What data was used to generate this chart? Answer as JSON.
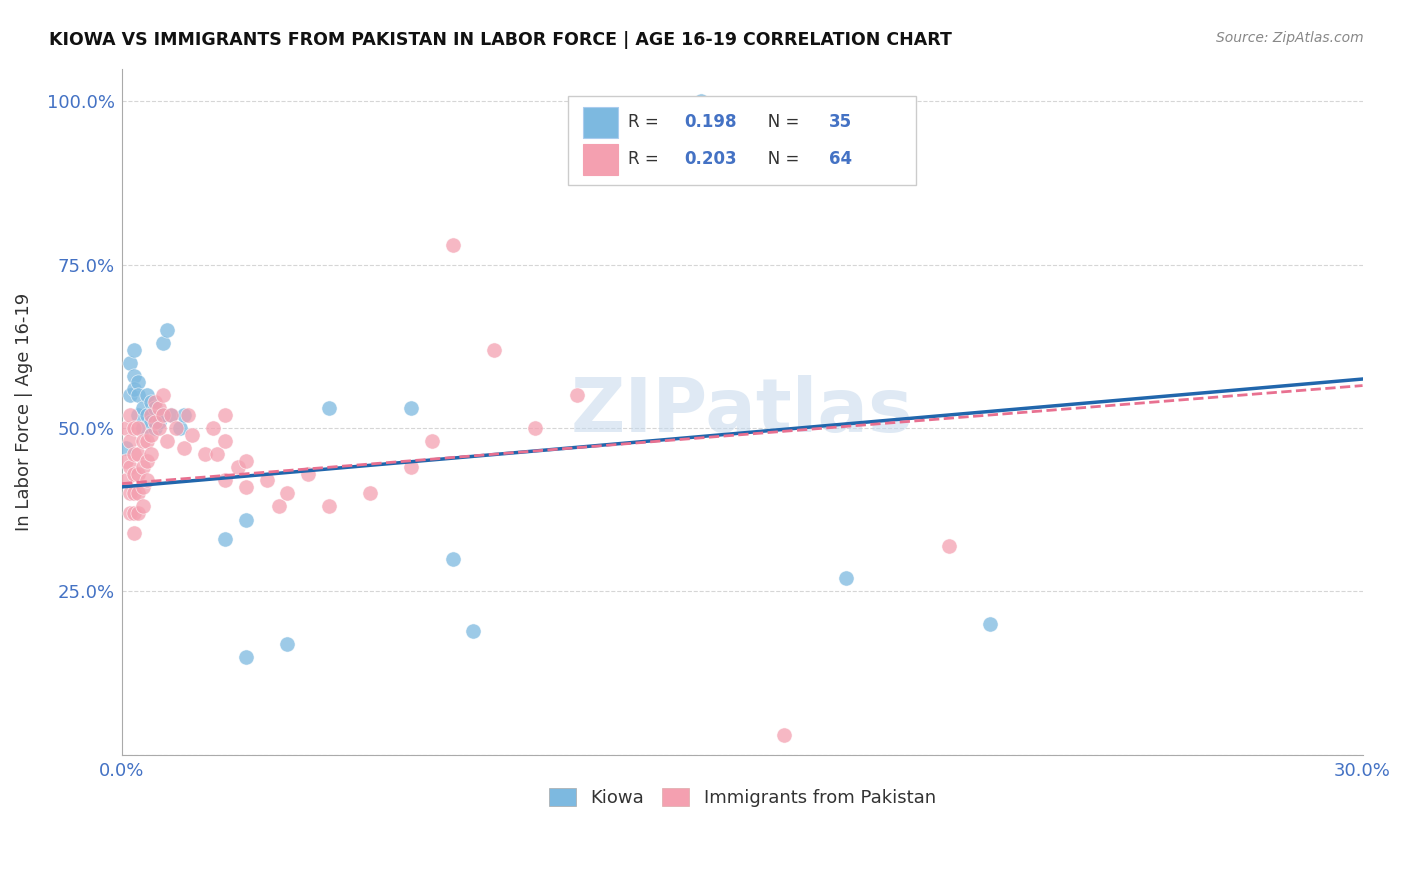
{
  "title": "KIOWA VS IMMIGRANTS FROM PAKISTAN IN LABOR FORCE | AGE 16-19 CORRELATION CHART",
  "source": "Source: ZipAtlas.com",
  "ylabel": "In Labor Force | Age 16-19",
  "xlim": [
    0.0,
    0.3
  ],
  "ylim": [
    0.0,
    1.05
  ],
  "xticks": [
    0.0,
    0.05,
    0.1,
    0.15,
    0.2,
    0.25,
    0.3
  ],
  "xticklabels": [
    "0.0%",
    "",
    "",
    "",
    "",
    "",
    "30.0%"
  ],
  "yticks": [
    0.0,
    0.25,
    0.5,
    0.75,
    1.0
  ],
  "yticklabels": [
    "",
    "25.0%",
    "50.0%",
    "75.0%",
    "100.0%"
  ],
  "watermark": "ZIPatlas",
  "kiowa_color": "#7db9e0",
  "pakistan_color": "#f4a0b0",
  "kiowa_line_color": "#2166ac",
  "pakistan_line_color": "#e87090",
  "kiowa_scatter": [
    [
      0.001,
      0.47
    ],
    [
      0.002,
      0.55
    ],
    [
      0.002,
      0.6
    ],
    [
      0.003,
      0.58
    ],
    [
      0.003,
      0.56
    ],
    [
      0.003,
      0.62
    ],
    [
      0.004,
      0.57
    ],
    [
      0.004,
      0.52
    ],
    [
      0.004,
      0.55
    ],
    [
      0.005,
      0.53
    ],
    [
      0.005,
      0.5
    ],
    [
      0.006,
      0.52
    ],
    [
      0.006,
      0.55
    ],
    [
      0.007,
      0.51
    ],
    [
      0.007,
      0.54
    ],
    [
      0.008,
      0.5
    ],
    [
      0.008,
      0.53
    ],
    [
      0.009,
      0.51
    ],
    [
      0.01,
      0.52
    ],
    [
      0.01,
      0.63
    ],
    [
      0.011,
      0.65
    ],
    [
      0.012,
      0.52
    ],
    [
      0.014,
      0.5
    ],
    [
      0.015,
      0.52
    ],
    [
      0.025,
      0.33
    ],
    [
      0.03,
      0.36
    ],
    [
      0.03,
      0.15
    ],
    [
      0.04,
      0.17
    ],
    [
      0.05,
      0.53
    ],
    [
      0.07,
      0.53
    ],
    [
      0.08,
      0.3
    ],
    [
      0.085,
      0.19
    ],
    [
      0.14,
      1.0
    ],
    [
      0.175,
      0.27
    ],
    [
      0.21,
      0.2
    ]
  ],
  "pakistan_scatter": [
    [
      0.001,
      0.5
    ],
    [
      0.001,
      0.45
    ],
    [
      0.001,
      0.42
    ],
    [
      0.002,
      0.52
    ],
    [
      0.002,
      0.48
    ],
    [
      0.002,
      0.44
    ],
    [
      0.002,
      0.4
    ],
    [
      0.002,
      0.37
    ],
    [
      0.003,
      0.5
    ],
    [
      0.003,
      0.46
    ],
    [
      0.003,
      0.43
    ],
    [
      0.003,
      0.4
    ],
    [
      0.003,
      0.37
    ],
    [
      0.003,
      0.34
    ],
    [
      0.004,
      0.5
    ],
    [
      0.004,
      0.46
    ],
    [
      0.004,
      0.43
    ],
    [
      0.004,
      0.4
    ],
    [
      0.004,
      0.37
    ],
    [
      0.005,
      0.48
    ],
    [
      0.005,
      0.44
    ],
    [
      0.005,
      0.41
    ],
    [
      0.005,
      0.38
    ],
    [
      0.006,
      0.48
    ],
    [
      0.006,
      0.45
    ],
    [
      0.006,
      0.42
    ],
    [
      0.007,
      0.52
    ],
    [
      0.007,
      0.49
    ],
    [
      0.007,
      0.46
    ],
    [
      0.008,
      0.54
    ],
    [
      0.008,
      0.51
    ],
    [
      0.009,
      0.53
    ],
    [
      0.009,
      0.5
    ],
    [
      0.01,
      0.55
    ],
    [
      0.01,
      0.52
    ],
    [
      0.011,
      0.48
    ],
    [
      0.012,
      0.52
    ],
    [
      0.013,
      0.5
    ],
    [
      0.015,
      0.47
    ],
    [
      0.016,
      0.52
    ],
    [
      0.017,
      0.49
    ],
    [
      0.02,
      0.46
    ],
    [
      0.022,
      0.5
    ],
    [
      0.023,
      0.46
    ],
    [
      0.025,
      0.42
    ],
    [
      0.025,
      0.52
    ],
    [
      0.025,
      0.48
    ],
    [
      0.028,
      0.44
    ],
    [
      0.03,
      0.45
    ],
    [
      0.03,
      0.41
    ],
    [
      0.035,
      0.42
    ],
    [
      0.038,
      0.38
    ],
    [
      0.04,
      0.4
    ],
    [
      0.045,
      0.43
    ],
    [
      0.05,
      0.38
    ],
    [
      0.06,
      0.4
    ],
    [
      0.07,
      0.44
    ],
    [
      0.075,
      0.48
    ],
    [
      0.08,
      0.78
    ],
    [
      0.09,
      0.62
    ],
    [
      0.1,
      0.5
    ],
    [
      0.11,
      0.55
    ],
    [
      0.16,
      0.03
    ],
    [
      0.2,
      0.32
    ]
  ],
  "grid_color": "#cccccc",
  "background_color": "#ffffff"
}
